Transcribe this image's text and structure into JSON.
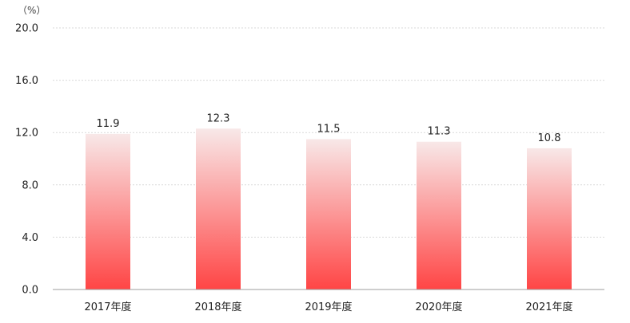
{
  "chart_data": {
    "type": "bar",
    "title": "",
    "xlabel": "",
    "ylabel": "",
    "unit_label": "（%）",
    "categories": [
      "2017年度",
      "2018年度",
      "2019年度",
      "2020年度",
      "2021年度"
    ],
    "values": [
      11.9,
      12.3,
      11.5,
      11.3,
      10.8
    ],
    "value_labels": [
      "11.9",
      "12.3",
      "11.5",
      "11.3",
      "10.8"
    ],
    "ylim": [
      0,
      20
    ],
    "yticks": [
      0,
      4,
      8,
      12,
      16,
      20
    ],
    "ytick_labels": [
      "0.0",
      "4.0",
      "8.0",
      "12.0",
      "16.0",
      "20.0"
    ],
    "grid": true,
    "legend": "none",
    "colors": {
      "bar_top": "#f8e8e8",
      "bar_bottom": "#ff4545",
      "grid": "#d9d9d9",
      "axis": "#9e9e9e"
    }
  }
}
